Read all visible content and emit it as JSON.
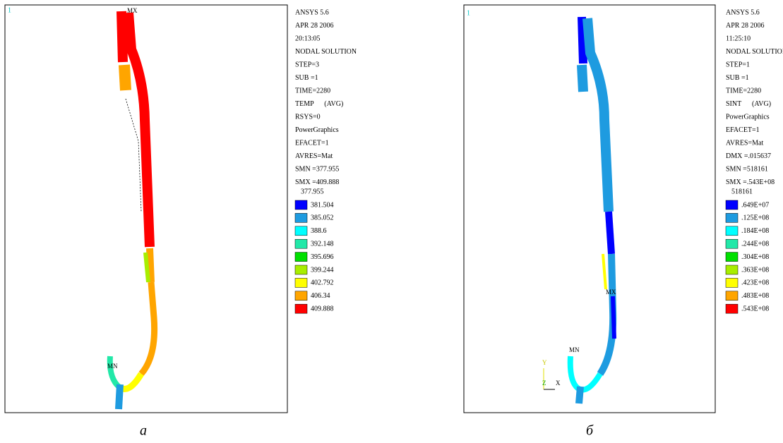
{
  "panels": [
    {
      "corner": "1",
      "info": [
        "ANSYS 5.6",
        "APR 28 2006",
        "20:13:05",
        "NODAL SOLUTION",
        "STEP=3",
        "SUB =1",
        "TIME=2280",
        "TEMP      (AVG)",
        "RSYS=0",
        "PowerGraphics",
        "EFACET=1",
        "AVRES=Mat",
        "SMN =377.955",
        "SMX =409.888"
      ],
      "legend": {
        "min_label": "377.955",
        "items": [
          {
            "color": "#0000ff",
            "label": "381.504"
          },
          {
            "color": "#1e9be0",
            "label": "385.052"
          },
          {
            "color": "#00ffff",
            "label": "388.6"
          },
          {
            "color": "#22e8a8",
            "label": "392.148"
          },
          {
            "color": "#00e000",
            "label": "395.696"
          },
          {
            "color": "#a8ee00",
            "label": "399.244"
          },
          {
            "color": "#ffff00",
            "label": "402.792"
          },
          {
            "color": "#ffa500",
            "label": "406.34"
          },
          {
            "color": "#ff0000",
            "label": "409.888"
          }
        ]
      },
      "markers": [
        "MX",
        "MN"
      ],
      "caption": "а"
    },
    {
      "corner": "1",
      "info": [
        "ANSYS 5.6",
        "APR 28 2006",
        "11:25:10",
        "NODAL SOLUTION",
        "STEP=1",
        "SUB =1",
        "TIME=2280",
        "SINT      (AVG)",
        "PowerGraphics",
        "EFACET=1",
        "AVRES=Mat",
        "DMX =.015637",
        "SMN =518161",
        "SMX =.543E+08"
      ],
      "legend": {
        "min_label": "518161",
        "items": [
          {
            "color": "#0000ff",
            "label": ".649E+07"
          },
          {
            "color": "#1e9be0",
            "label": ".125E+08"
          },
          {
            "color": "#00ffff",
            "label": ".184E+08"
          },
          {
            "color": "#22e8a8",
            "label": ".244E+08"
          },
          {
            "color": "#00e000",
            "label": ".304E+08"
          },
          {
            "color": "#a8ee00",
            "label": ".363E+08"
          },
          {
            "color": "#ffff00",
            "label": ".423E+08"
          },
          {
            "color": "#ffa500",
            "label": ".483E+08"
          },
          {
            "color": "#ff0000",
            "label": ".543E+08"
          }
        ]
      },
      "markers": [
        "MX",
        "MN"
      ],
      "triad": [
        "Y",
        "Z",
        "X"
      ],
      "caption": "б"
    }
  ]
}
